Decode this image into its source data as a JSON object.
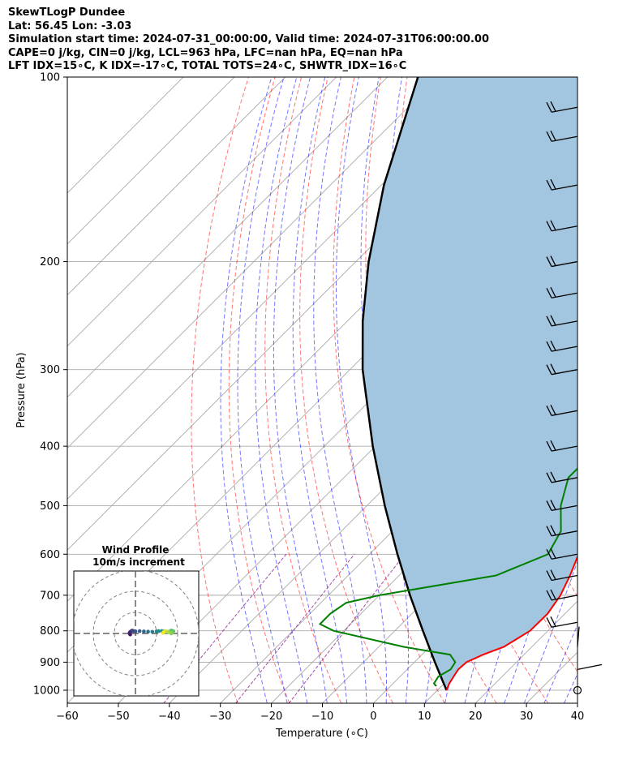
{
  "header": {
    "line1": "SkewTLogP Dundee",
    "line2": "Lat: 56.45   Lon: -3.03",
    "line3": "Simulation start time: 2024-07-31_00:00:00, Valid time: 2024-07-31T06:00:00.00",
    "line4": "CAPE=0 j/kg, CIN=0 j/kg, LCL=963 hPa, LFC=nan hPa, EQ=nan hPa",
    "line5": "LFT IDX=15∘C, K IDX=-17∘C, TOTAL TOTS=24∘C, SHWTR_IDX=16∘C"
  },
  "colors": {
    "temperature": "#ff0000",
    "dewpoint": "#008000",
    "parcel": "#000000",
    "cin_shade": "#a3c6e0",
    "dry_adiabat": "#ff0000",
    "moist_adiabat": "#0000ff",
    "mixing_ratio": "#800080",
    "isotherm": "#aaaaaa"
  },
  "chart_data": [
    {
      "type": "line",
      "subtype": "skew-t log-p",
      "title": "",
      "xlabel": "Temperature (∘C)",
      "ylabel": "Pressure (hPa)",
      "xlim": [
        -60,
        40
      ],
      "ylim": [
        1050,
        100
      ],
      "y_scale": "log",
      "x_ticks": [
        "−60",
        "−50",
        "−40",
        "−30",
        "−20",
        "−10",
        "0",
        "10",
        "20",
        "30",
        "40"
      ],
      "y_ticks": [
        "1000",
        "900",
        "800",
        "700",
        "600",
        "500",
        "400",
        "300",
        "200",
        "100"
      ],
      "grid": true,
      "series": [
        {
          "role": "temperature",
          "pressure": [
            1000,
            975,
            950,
            925,
            900,
            875,
            850,
            800,
            750,
            700,
            650,
            600,
            550,
            500,
            450,
            400,
            350,
            300,
            275,
            250,
            225,
            200,
            175,
            150,
            125,
            100
          ],
          "values": [
            11.8,
            11.0,
            10.5,
            10.0,
            10.2,
            12.0,
            14.5,
            16.5,
            16.6,
            15.5,
            13.5,
            11.0,
            8.5,
            6.2,
            3.5,
            0.5,
            -3.5,
            -8.0,
            -10.0,
            -12.0,
            -12.0,
            -11.0,
            -8.0,
            -2.0,
            4.5,
            12.0
          ]
        },
        {
          "role": "dewpoint",
          "pressure": [
            985,
            975,
            950,
            925,
            900,
            875,
            850,
            800,
            780,
            750,
            720,
            700,
            650,
            600,
            550,
            500,
            450,
            425,
            400,
            375,
            350,
            325,
            300,
            275,
            250,
            225,
            200,
            175,
            150,
            137,
            125,
            112,
            100
          ],
          "values": [
            9.0,
            8.0,
            7.5,
            8.5,
            8.0,
            5.5,
            -5.0,
            -22.0,
            -26.0,
            -26.0,
            -25.0,
            -20.0,
            -1.0,
            5.0,
            3.0,
            -2.0,
            -6.0,
            -6.0,
            -7.0,
            -9.0,
            -12.0,
            -15.0,
            -17.5,
            -18.0,
            -21.0,
            -24.0,
            -22.5,
            -20.5,
            -20.5,
            -22.5,
            -20.0,
            -14.0,
            -6.0
          ]
        },
        {
          "role": "parcel",
          "pressure": [
            1000,
            963,
            900,
            800,
            700,
            600,
            500,
            400,
            300,
            250,
            200,
            150,
            100
          ],
          "values": [
            11.8,
            9.0,
            4.0,
            -4.5,
            -14.0,
            -24.5,
            -36.5,
            -50.5,
            -67.5,
            -77.0,
            -87.5,
            -99.5,
            -114.0
          ]
        }
      ],
      "wind_barbs_pressure": [
        1000,
        925,
        850,
        775,
        700,
        650,
        600,
        550,
        500,
        450,
        400,
        350,
        300,
        275,
        250,
        225,
        200,
        175,
        150,
        125,
        112
      ]
    },
    {
      "type": "scatter",
      "subtype": "hodograph",
      "title": "Wind Profile",
      "subtitle": "10m/s increment",
      "ring_spacing": 10,
      "u": [
        -2.5,
        -2.5,
        -2.8,
        -2.6,
        -2.0,
        -1.5,
        -1.0,
        0.0,
        2.0,
        4.0,
        6.0,
        8.0,
        10.0,
        11.0,
        12.5,
        13.5,
        14.5,
        15.5,
        16.0,
        17.0,
        18.0,
        17.5,
        17.0,
        16.0,
        15.0,
        14.0,
        13.5,
        13.0
      ],
      "v": [
        -0.2,
        -0.5,
        0.1,
        0.6,
        1.1,
        1.4,
        1.2,
        1.0,
        1.1,
        1.0,
        0.9,
        0.8,
        1.0,
        1.1,
        1.2,
        1.0,
        0.6,
        0.6,
        0.9,
        1.4,
        1.1,
        0.5,
        0.0,
        0.6,
        0.9,
        1.1,
        0.7,
        0.2
      ]
    }
  ]
}
